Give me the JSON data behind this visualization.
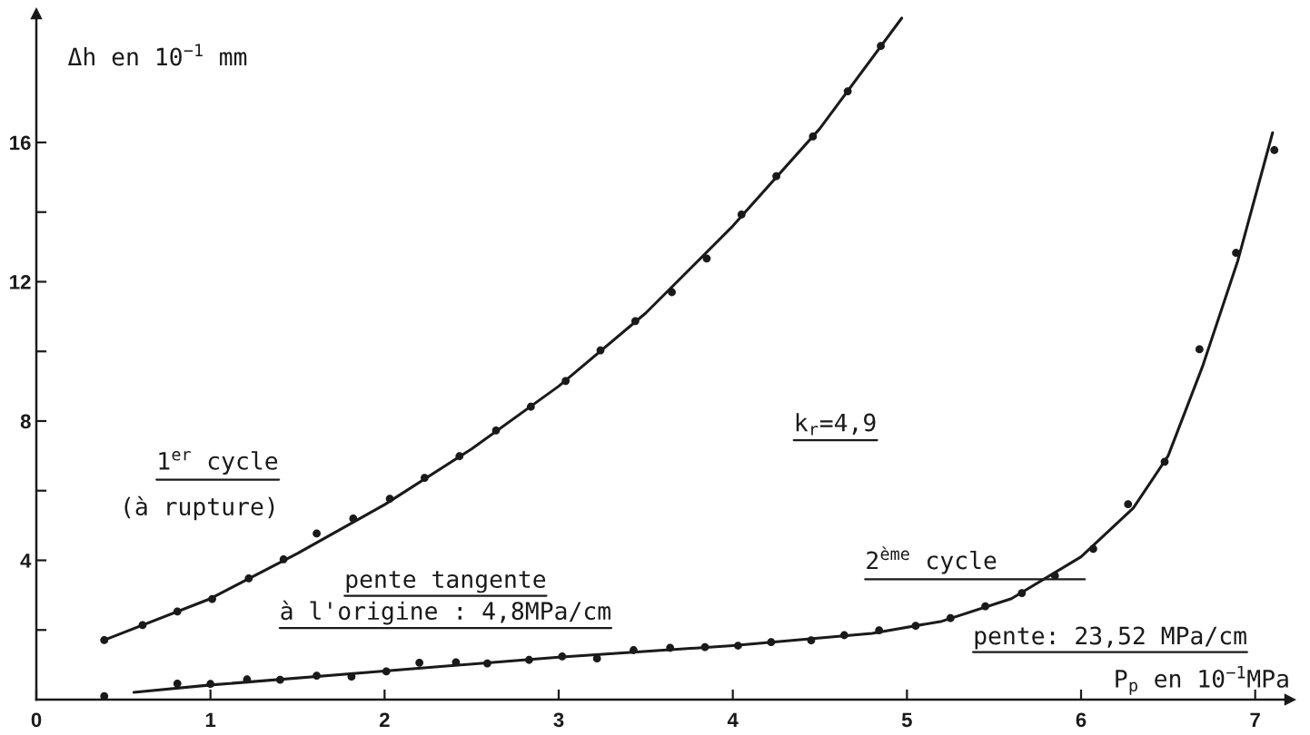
{
  "chart_data": {
    "type": "scatter",
    "xlabel": "P$_{p}$ en 10$^{−1}$MPa",
    "ylabel": "Δh en 10$^{−1}$ mm",
    "series": [
      {
        "type": "scatter",
        "color": "#1a1a1a",
        "marker": "circle",
        "x": [
          0.39,
          0.61,
          0.81,
          1.01,
          1.22,
          1.42,
          1.61,
          1.82,
          2.03,
          2.23,
          2.43,
          2.64,
          2.84,
          3.04,
          3.24,
          3.44,
          3.65,
          3.85,
          4.05,
          4.25,
          4.46,
          4.66,
          4.85
        ],
        "values": [
          1.71,
          2.14,
          2.53,
          2.89,
          3.48,
          4.03,
          4.77,
          5.2,
          5.77,
          6.37,
          6.99,
          7.73,
          8.41,
          9.15,
          10.03,
          10.87,
          11.7,
          12.67,
          13.93,
          15.03,
          16.17,
          17.47,
          18.77
        ]
      },
      {
        "type": "line",
        "name": "1$^{er}$ cycle\n(à rupture)",
        "color": "#1a1a1a",
        "x": [
          0.39,
          1.0,
          1.5,
          2.0,
          2.5,
          3.0,
          3.5,
          4.0,
          4.5,
          4.97
        ],
        "values": [
          1.71,
          2.9,
          4.2,
          5.6,
          7.2,
          9.0,
          11.1,
          13.6,
          16.4,
          19.57
        ]
      },
      {
        "type": "scatter",
        "color": "#1a1a1a",
        "marker": "circle",
        "x": [
          0.39,
          0.81,
          1.0,
          1.21,
          1.4,
          1.61,
          1.81,
          2.01,
          2.2,
          2.41,
          2.59,
          2.83,
          3.02,
          3.22,
          3.43,
          3.64,
          3.84,
          4.03,
          4.22,
          4.45,
          4.64,
          4.84,
          5.05,
          5.25,
          5.45,
          5.66,
          5.85,
          6.07,
          6.27,
          6.48,
          6.68,
          6.89,
          7.11
        ],
        "values": [
          0.1,
          0.46,
          0.45,
          0.58,
          0.57,
          0.69,
          0.66,
          0.81,
          1.06,
          1.07,
          1.04,
          1.14,
          1.24,
          1.18,
          1.42,
          1.49,
          1.51,
          1.55,
          1.65,
          1.7,
          1.85,
          1.99,
          2.12,
          2.34,
          2.68,
          3.06,
          3.56,
          4.33,
          5.61,
          6.83,
          10.06,
          12.83,
          15.78
        ]
      },
      {
        "type": "line",
        "name": "2$^{ème}$ cycle",
        "color": "#1a1a1a",
        "x": [
          0.56,
          1.0,
          2.0,
          3.0,
          4.0,
          4.8,
          5.2,
          5.6,
          6.0,
          6.3,
          6.5,
          6.7,
          6.9,
          7.1
        ],
        "values": [
          0.21,
          0.42,
          0.82,
          1.22,
          1.55,
          1.9,
          2.25,
          2.9,
          4.1,
          5.5,
          7.0,
          9.6,
          12.6,
          16.28
        ]
      }
    ],
    "annotations": [
      "pente tangente\nà l'origine : 4,8MPa/cm",
      "k$_{r}$=4,9",
      "pente: 23,52 MPa/cm"
    ],
    "xlim": [
      0,
      7.2
    ],
    "ylim": [
      0,
      19.7
    ],
    "xticks": [
      0,
      1,
      2,
      3,
      4,
      5,
      6,
      7
    ],
    "yticks": [
      {
        "value": 2,
        "label": null
      },
      4,
      {
        "value": 6,
        "label": null
      },
      8,
      {
        "value": 10,
        "label": null
      },
      12,
      {
        "value": 14,
        "label": null
      },
      16
    ],
    "grid": false
  }
}
